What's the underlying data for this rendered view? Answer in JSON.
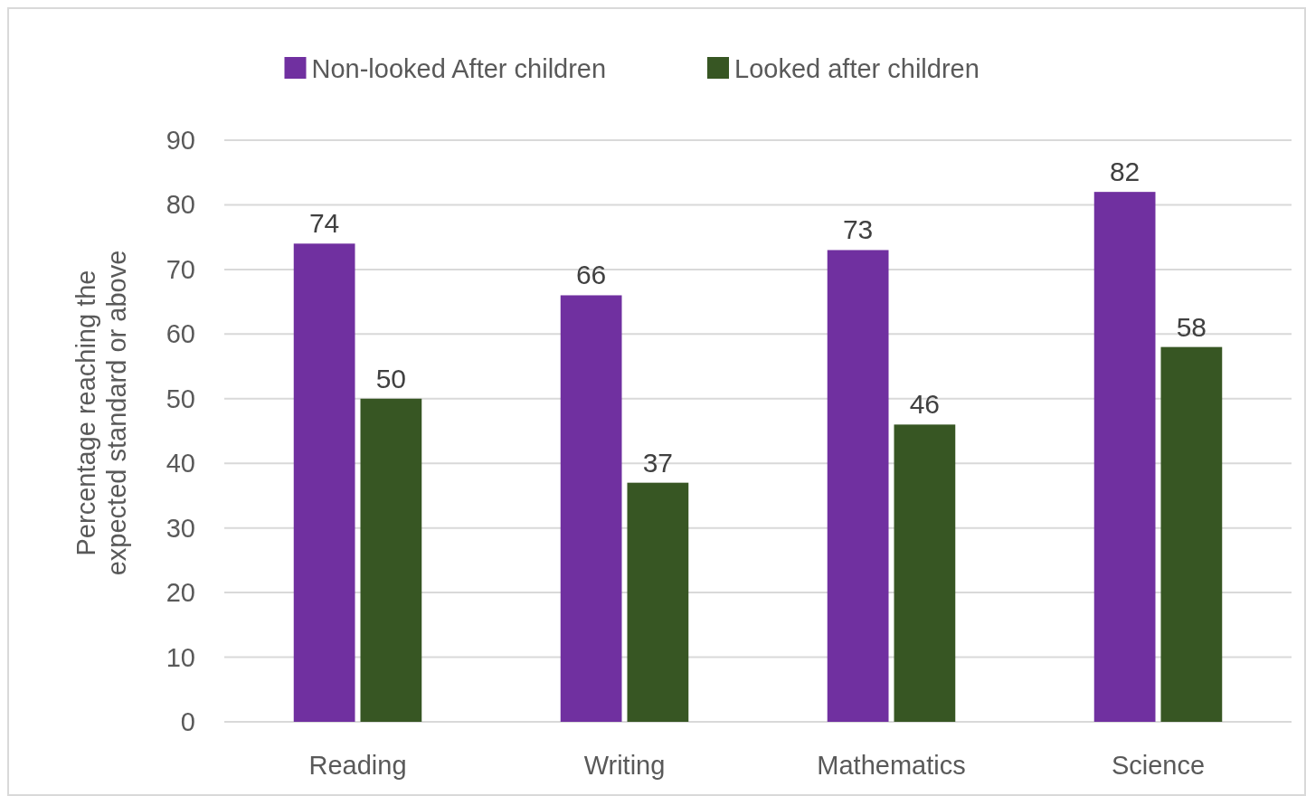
{
  "chart_data": {
    "type": "bar",
    "ylabel": "Percentage reaching the expected standard or above",
    "categories": [
      "Reading",
      "Writing",
      "Mathematics",
      "Science"
    ],
    "series": [
      {
        "name": "Non-looked After children",
        "color": "#7030a0",
        "values": [
          74,
          66,
          73,
          82
        ]
      },
      {
        "name": "Looked after children",
        "color": "#375623",
        "values": [
          50,
          37,
          46,
          58
        ]
      }
    ],
    "ylim": [
      0,
      90
    ],
    "yticks": [
      0,
      10,
      20,
      30,
      40,
      50,
      60,
      70,
      80,
      90
    ],
    "grid": "y",
    "legend": "top",
    "data_labels": true
  }
}
